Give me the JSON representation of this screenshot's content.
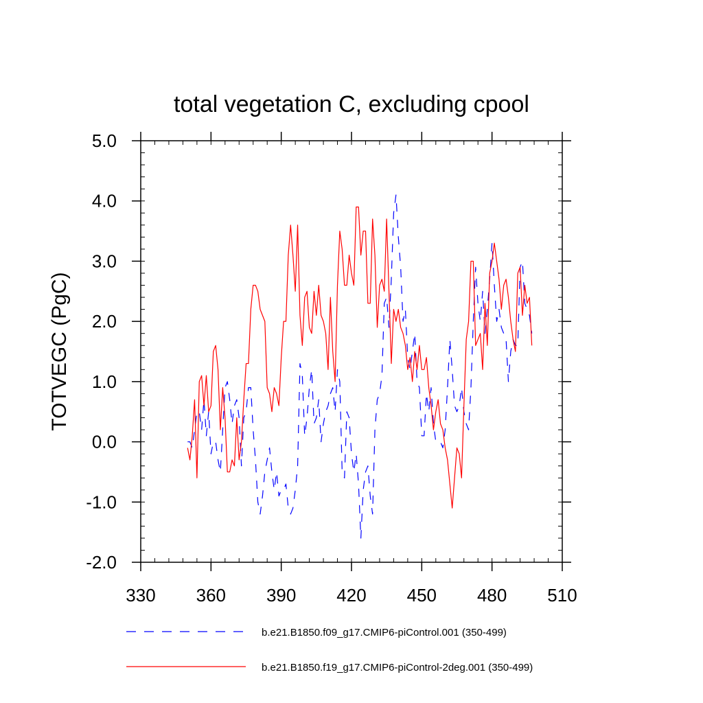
{
  "chart_data": {
    "type": "line",
    "title": "total vegetation C, excluding cpool",
    "xlabel": "",
    "ylabel": "TOTVEGC  (PgC)",
    "xlim": [
      330,
      510
    ],
    "ylim": [
      -2.0,
      5.0
    ],
    "x_ticks": [
      330,
      360,
      390,
      420,
      450,
      480,
      510
    ],
    "x_tick_labels": [
      "330",
      "360",
      "390",
      "420",
      "450",
      "480",
      "510"
    ],
    "y_ticks": [
      -2,
      -1,
      0,
      1,
      2,
      3,
      4,
      5
    ],
    "y_tick_labels": [
      "-2.0",
      "-1.0",
      "0.0",
      "1.0",
      "2.0",
      "3.0",
      "4.0",
      "5.0"
    ],
    "legend_position": "bottom",
    "series": [
      {
        "name": "b.e21.B1850.f09_g17.CMIP6-piControl.001 (350-499)",
        "color": "#0000ff",
        "style": "dashed",
        "x_start": 350,
        "values": [
          0.0,
          0.0,
          -0.1,
          0.2,
          0.5,
          0.5,
          0.2,
          0.7,
          0.1,
          0.5,
          -0.2,
          0.0,
          0.0,
          -0.3,
          -0.5,
          0.2,
          0.9,
          1.0,
          0.7,
          0.3,
          0.6,
          0.7,
          0.4,
          -0.4,
          0.4,
          0.5,
          0.9,
          0.9,
          0.2,
          -0.3,
          -1.0,
          -1.2,
          -0.9,
          -0.5,
          -0.3,
          -0.1,
          -0.5,
          -0.8,
          -0.5,
          -0.9,
          -0.8,
          -0.8,
          -0.7,
          -1.1,
          -1.2,
          -1.1,
          -0.8,
          -0.4,
          1.3,
          1.1,
          0.1,
          0.4,
          0.9,
          1.2,
          0.3,
          0.4,
          0.7,
          0.0,
          0.3,
          0.5,
          0.6,
          0.8,
          0.9,
          0.5,
          1.2,
          1.0,
          -0.5,
          -0.6,
          0.5,
          0.4,
          -0.2,
          -0.5,
          -0.2,
          -0.7,
          -1.6,
          -0.8,
          -0.5,
          -0.4,
          -0.9,
          -1.2,
          0.2,
          0.7,
          0.8,
          1.1,
          2.3,
          2.4,
          1.9,
          2.7,
          3.8,
          4.1,
          3.4,
          2.9,
          2.0,
          2.2,
          1.4,
          1.2,
          1.5,
          1.8,
          1.0,
          0.9,
          0.1,
          0.1,
          0.8,
          0.5,
          0.9,
          0.3,
          0.0,
          0.0,
          0.0,
          -0.1,
          0.2,
          0.9,
          1.7,
          1.2,
          0.6,
          0.5,
          0.6,
          0.9,
          0.5,
          0.3,
          0.2,
          0.9,
          2.0,
          2.9,
          2.3,
          2.0,
          2.5,
          1.8,
          2.2,
          2.7,
          3.3,
          2.6,
          2.0,
          2.2,
          1.9,
          1.8,
          1.7,
          1.0,
          1.5,
          1.7,
          1.6,
          1.6,
          2.9,
          3.0,
          2.3,
          2.2,
          2.1,
          1.8
        ]
      },
      {
        "name": "b.e21.B1850.f19_g17.CMIP6-piControl-2deg.001 (350-499)",
        "color": "#ff0000",
        "style": "solid",
        "x_start": 350,
        "values": [
          -0.1,
          -0.3,
          0.1,
          0.7,
          -0.6,
          1.0,
          1.1,
          0.6,
          1.1,
          0.5,
          0.6,
          1.5,
          1.6,
          1.2,
          0.2,
          0.9,
          0.4,
          -0.5,
          -0.5,
          -0.3,
          -0.4,
          0.4,
          -0.3,
          0.0,
          0.7,
          1.3,
          1.3,
          2.2,
          2.6,
          2.6,
          2.5,
          2.2,
          2.1,
          2.0,
          0.9,
          0.8,
          0.5,
          0.9,
          0.8,
          0.6,
          1.4,
          2.0,
          2.0,
          3.1,
          3.6,
          3.1,
          2.5,
          3.6,
          2.1,
          1.6,
          2.4,
          2.5,
          1.9,
          1.8,
          2.5,
          2.1,
          2.6,
          2.1,
          2.0,
          1.8,
          1.2,
          2.4,
          1.5,
          1.0,
          2.6,
          3.5,
          3.2,
          2.6,
          2.6,
          3.1,
          2.8,
          2.6,
          3.9,
          3.9,
          3.1,
          3.5,
          3.5,
          2.3,
          2.3,
          3.7,
          3.1,
          1.9,
          2.6,
          2.7,
          2.5,
          3.7,
          2.5,
          1.3,
          2.2,
          2.0,
          2.2,
          1.9,
          1.8,
          1.6,
          1.2,
          1.4,
          1.0,
          1.5,
          1.2,
          1.6,
          1.2,
          1.2,
          1.4,
          0.9,
          0.6,
          0.2,
          0.5,
          0.7,
          0.3,
          0.2,
          -0.1,
          -0.3,
          -0.7,
          -1.1,
          -0.6,
          -0.1,
          -0.2,
          -0.6,
          0.6,
          1.7,
          2.0,
          3.0,
          3.0,
          1.6,
          1.7,
          1.8,
          1.2,
          2.3,
          1.6,
          2.8,
          3.0,
          3.3,
          3.0,
          2.7,
          2.2,
          2.6,
          2.7,
          2.4,
          2.0,
          1.7,
          1.5,
          2.8,
          2.9,
          2.1,
          2.6,
          2.3,
          2.4,
          1.6
        ]
      }
    ]
  }
}
